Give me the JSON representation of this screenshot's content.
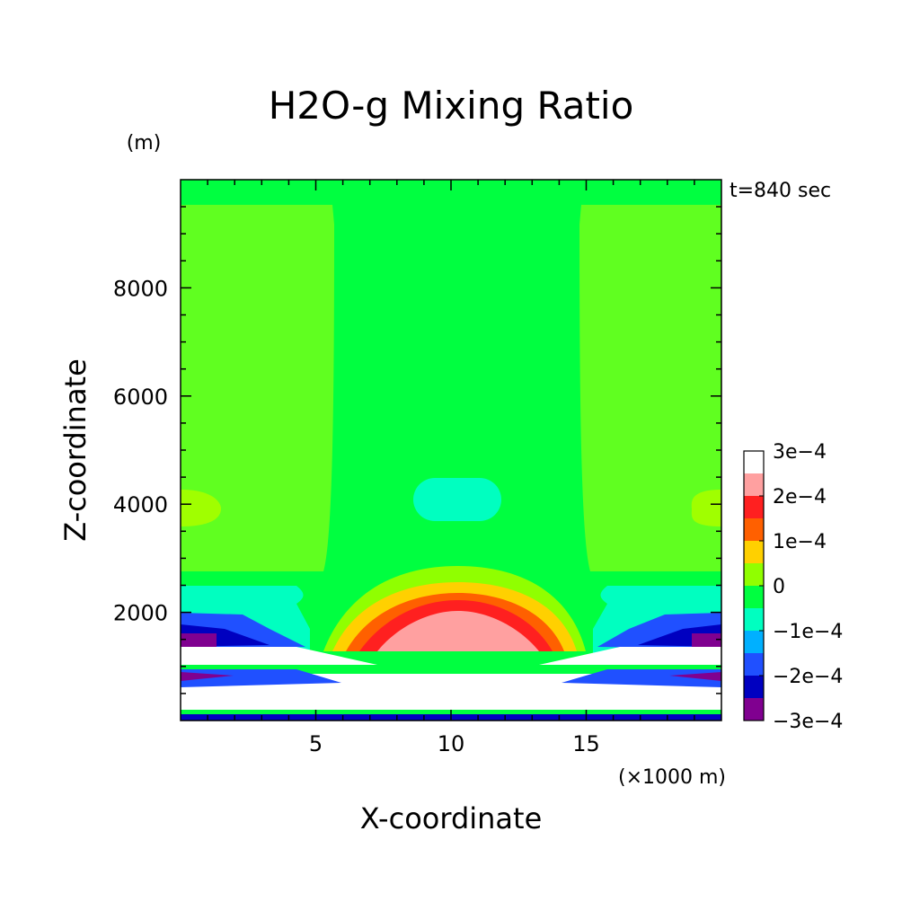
{
  "chart_data": {
    "type": "heatmap",
    "title": "H2O-g Mixing Ratio",
    "xlabel": "X-coordinate",
    "ylabel": "Z-coordinate",
    "x_unit": "(×1000 m)",
    "y_unit": "(m)",
    "annotation": "t=840 sec",
    "xlim": [
      0,
      20
    ],
    "ylim": [
      0,
      10000
    ],
    "x_ticks": [
      5,
      10,
      15
    ],
    "y_ticks": [
      2000,
      4000,
      6000,
      8000
    ],
    "x_tick_labels": [
      "5",
      "10",
      "15"
    ],
    "y_tick_labels": [
      "2000",
      "4000",
      "6000",
      "8000"
    ],
    "colorbar": {
      "levels": [
        -0.0003,
        -0.00025,
        -0.0002,
        -0.00015,
        -0.0001,
        -5e-05,
        0,
        5e-05,
        0.0001,
        0.00015,
        0.0002,
        0.00025,
        0.0003
      ],
      "colors": [
        "#800090",
        "#0000c0",
        "#2050ff",
        "#00b0ff",
        "#00ffc0",
        "#00ff40",
        "#90ff00",
        "#ffd000",
        "#ff6000",
        "#ff2020",
        "#ffa0a0"
      ],
      "tick_labels": [
        "3e−4",
        "2e−4",
        "1e−4",
        "0",
        "−1e−4",
        "−2e−4",
        "−3e−4"
      ],
      "tick_values": [
        0.0003,
        0.0002,
        0.0001,
        0,
        -0.0001,
        -0.0002,
        -0.0003
      ]
    },
    "background_color": "#00ff40",
    "regions": [
      {
        "name": "upper-side-bands",
        "color": "#60ff20"
      },
      {
        "name": "mid-anomaly",
        "color": "#00ffc0"
      },
      {
        "name": "side-bumps",
        "color": "#a0ff00"
      },
      {
        "name": "out-of-range-high",
        "color": "#ffffff"
      }
    ]
  }
}
